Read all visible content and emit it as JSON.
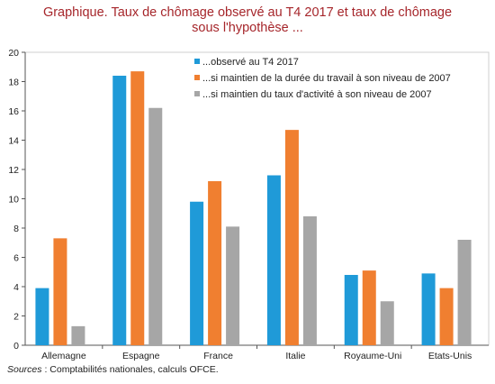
{
  "title_line1": "Graphique. Taux de chômage observé au T4 2017 et taux de chômage",
  "title_line2": "sous l'hypothèse ...",
  "source_label": "Sources",
  "source_text": " : Comptabilités nationales, calculs OFCE.",
  "chart_data": {
    "type": "bar",
    "categories": [
      "Allemagne",
      "Espagne",
      "France",
      "Italie",
      "Royaume-Uni",
      "Etats-Unis"
    ],
    "series": [
      {
        "name": "...observé au T4 2017",
        "color": "#1f9ad8",
        "values": [
          3.9,
          18.4,
          9.8,
          11.6,
          4.8,
          4.9
        ]
      },
      {
        "name": "...si maintien de la durée du travail à son niveau de 2007",
        "color": "#f07f30",
        "values": [
          7.3,
          18.7,
          11.2,
          14.7,
          5.1,
          3.9
        ]
      },
      {
        "name": "...si maintien du taux d'activité à son niveau de 2007",
        "color": "#a6a6a6",
        "values": [
          1.3,
          16.2,
          8.1,
          8.8,
          3.0,
          7.2
        ]
      }
    ],
    "ylim": [
      0,
      20
    ],
    "yticks": [
      "0",
      "2",
      "4",
      "6",
      "8",
      "10",
      "12",
      "14",
      "16",
      "18",
      "20"
    ],
    "grid": false,
    "legend_position": "top-right"
  }
}
